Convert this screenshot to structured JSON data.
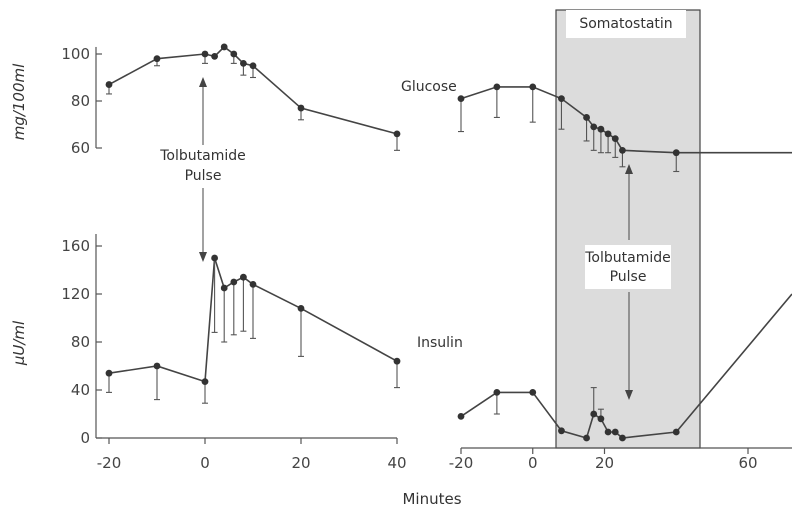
{
  "figure": {
    "xlabel": "Minutes",
    "left_glucose_ylabel": "mg/100ml",
    "left_insulin_ylabel": "μU/ml",
    "left_annotation_line1": "Tolbutamide",
    "left_annotation_line2": "Pulse",
    "right_annotation_line1": "Tolbutamide",
    "right_annotation_line2": "Pulse",
    "somatostatin_label": "Somatostatin",
    "glucose_label": "Glucose",
    "insulin_label": "Insulin"
  },
  "chart_data": [
    {
      "type": "line",
      "name": "left-glucose",
      "ylabel": "mg/100ml",
      "xlim": [
        -20,
        40
      ],
      "ylim": [
        60,
        105
      ],
      "y_ticks": [
        60,
        80,
        100
      ],
      "y_tick_labels": [
        "60",
        "80",
        "100"
      ],
      "x": [
        -20,
        -10,
        0,
        2,
        4,
        6,
        8,
        10,
        20,
        40
      ],
      "y": [
        87,
        98,
        100,
        99,
        103,
        100,
        96,
        95,
        77,
        66
      ],
      "err_up": [
        0,
        0,
        0,
        0,
        0,
        0,
        0,
        0,
        0,
        0
      ],
      "err_down": [
        4,
        3,
        4,
        0,
        0,
        4,
        5,
        5,
        5,
        7
      ]
    },
    {
      "type": "line",
      "name": "left-insulin",
      "ylabel": "μU/ml",
      "xlim": [
        -20,
        40
      ],
      "ylim": [
        0,
        180
      ],
      "y_ticks": [
        0,
        40,
        80,
        120,
        160
      ],
      "y_tick_labels": [
        "0",
        "40",
        "80",
        "120",
        "160"
      ],
      "x_ticks": [
        -20,
        0,
        20,
        40
      ],
      "x_tick_labels": [
        "-20",
        "0",
        "20",
        "40"
      ],
      "x": [
        -20,
        -10,
        0,
        2,
        4,
        6,
        8,
        10,
        20,
        40
      ],
      "y": [
        54,
        60,
        47,
        150,
        125,
        130,
        134,
        128,
        108,
        64
      ],
      "err_up": [
        0,
        0,
        0,
        0,
        0,
        0,
        0,
        0,
        0,
        0
      ],
      "err_down": [
        16,
        28,
        18,
        62,
        45,
        44,
        45,
        45,
        40,
        22
      ]
    },
    {
      "type": "line",
      "name": "right-glucose",
      "series_label": "Glucose",
      "xlim": [
        -20,
        80
      ],
      "ylim": [
        60,
        105
      ],
      "x": [
        -20,
        -10,
        0,
        8,
        15,
        17,
        19,
        21,
        23,
        25,
        40,
        80
      ],
      "y": [
        81,
        86,
        86,
        81,
        73,
        69,
        68,
        66,
        64,
        59,
        58,
        58
      ],
      "err_up": [
        0,
        0,
        0,
        0,
        0,
        0,
        0,
        0,
        0,
        0,
        0,
        0
      ],
      "err_down": [
        14,
        13,
        15,
        13,
        10,
        10,
        10,
        8,
        8,
        7,
        8,
        0
      ]
    },
    {
      "type": "line",
      "name": "right-insulin",
      "series_label": "Insulin",
      "xlim": [
        -20,
        80
      ],
      "ylim": [
        0,
        180
      ],
      "x_ticks": [
        -20,
        0,
        20,
        60
      ],
      "x_tick_labels": [
        "-20",
        "0",
        "20",
        "60"
      ],
      "shaded_interval": [
        0,
        30
      ],
      "shaded_label": "Somatostatin",
      "x": [
        -20,
        -10,
        0,
        8,
        15,
        17,
        19,
        21,
        23,
        25,
        40,
        80
      ],
      "y": [
        18,
        38,
        38,
        6,
        0,
        20,
        16,
        5,
        5,
        0,
        5,
        120
      ],
      "err_up": [
        0,
        0,
        0,
        0,
        0,
        22,
        8,
        0,
        0,
        0,
        0,
        0
      ],
      "err_down": [
        0,
        18,
        0,
        0,
        0,
        0,
        0,
        0,
        0,
        0,
        0,
        0
      ]
    }
  ]
}
